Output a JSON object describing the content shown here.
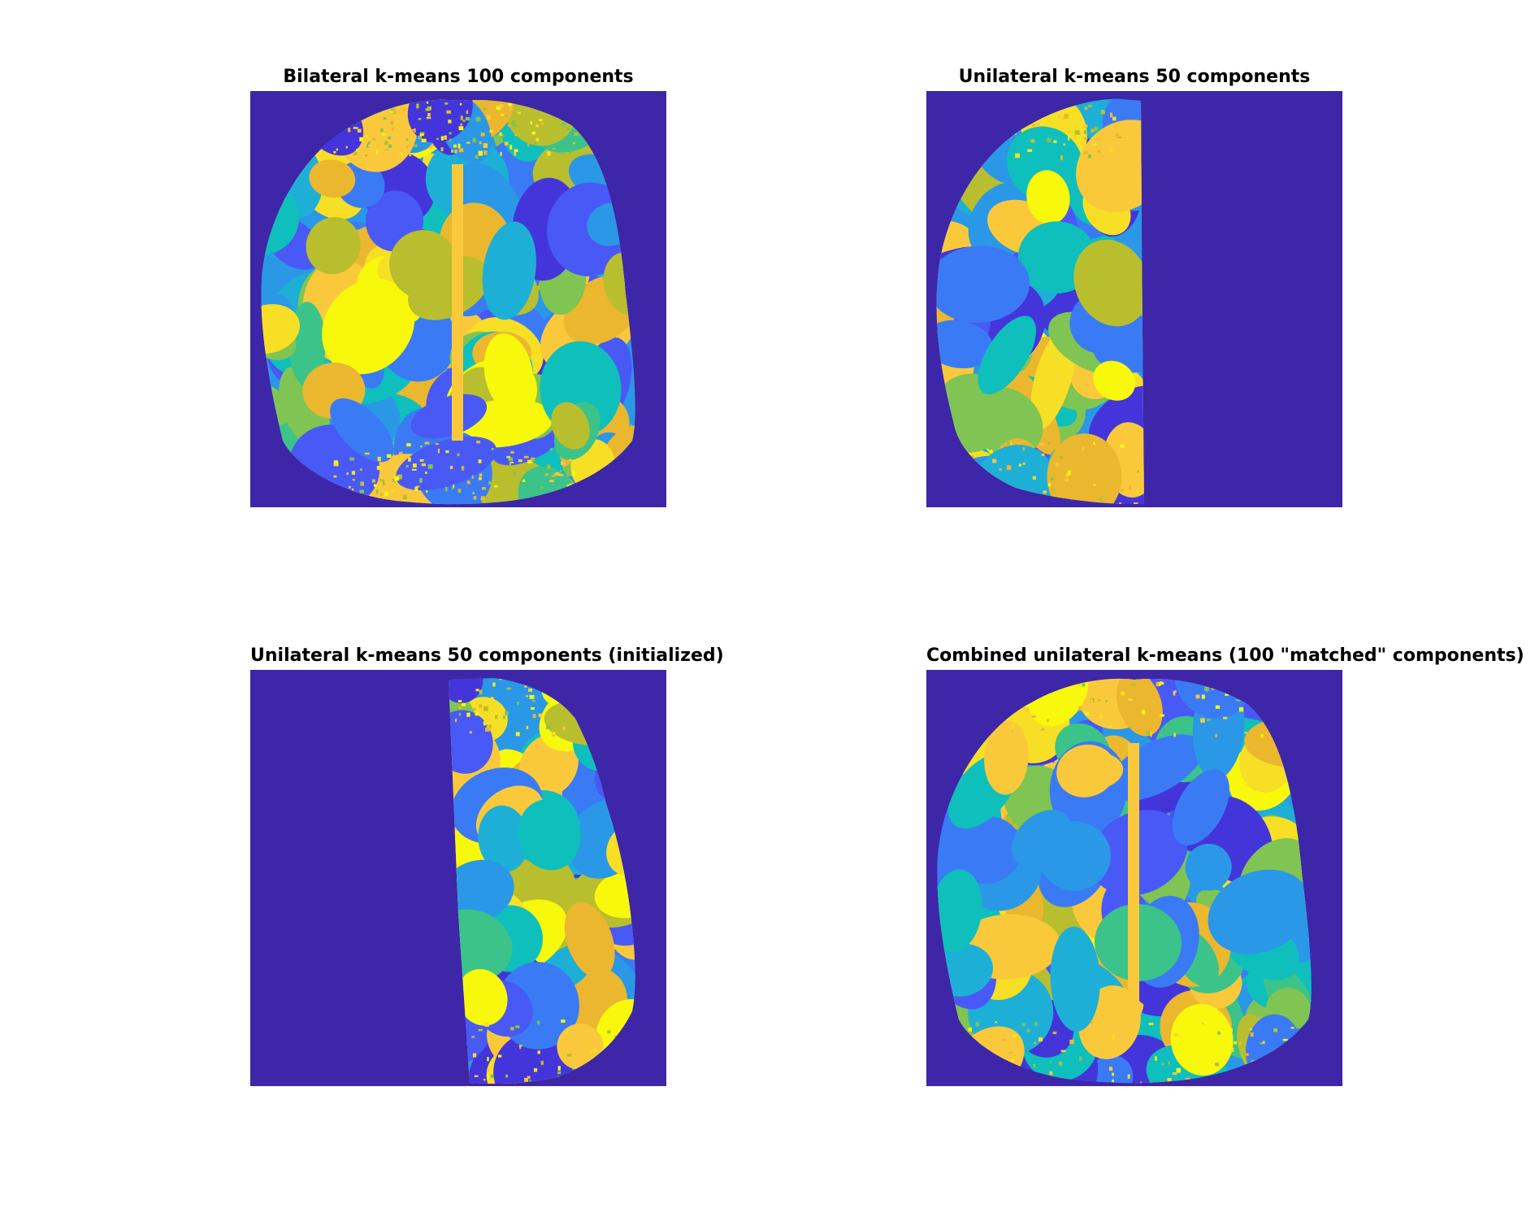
{
  "figure": {
    "panels": [
      {
        "title": "Bilateral k-means 100 components",
        "type": "bilateral"
      },
      {
        "title": "Unilateral k-means 50 components",
        "type": "left"
      },
      {
        "title": "Unilateral k-means 50 components (initialized)",
        "type": "right"
      },
      {
        "title": "Combined unilateral k-means (100 \"matched\" components)",
        "type": "combined"
      }
    ]
  },
  "colors": {
    "background": "#3e26a8",
    "parula": [
      "#3e26a8",
      "#4435da",
      "#4859f5",
      "#3a7bf5",
      "#2a98e6",
      "#1eafd6",
      "#0fbfbc",
      "#3bc38a",
      "#80c453",
      "#b9be2e",
      "#eab72f",
      "#fac93b",
      "#f6df24",
      "#f8f80d"
    ]
  }
}
